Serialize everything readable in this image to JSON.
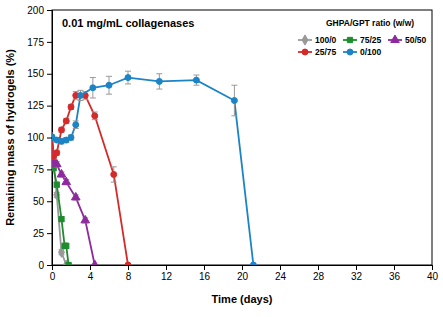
{
  "chart_data": {
    "type": "line",
    "title": "0.01 mg/mL collagenases",
    "x_label": "Time (days)",
    "y_label": "Remaining mass of hydrogels (%)",
    "legend_title": "GHPA/GPT ratio (w/w)",
    "legend": "upper right",
    "grid": false,
    "xlim": [
      0,
      40
    ],
    "xticks": [
      0,
      4,
      8,
      12,
      16,
      20,
      24,
      28,
      32,
      36,
      40
    ],
    "ylim": [
      0,
      200
    ],
    "yticks": [
      0,
      25,
      50,
      75,
      100,
      125,
      150,
      175,
      200
    ],
    "series": [
      {
        "name": "100/0",
        "color": "#999999",
        "marker": "diamond",
        "x": [
          0,
          0.17,
          0.5,
          1,
          1.5
        ],
        "values": [
          100,
          80,
          55,
          10,
          0
        ],
        "errors": [
          1,
          2,
          2,
          2,
          0
        ]
      },
      {
        "name": "75/25",
        "color": "#1e8c2e",
        "marker": "square",
        "x": [
          0,
          0.17,
          0.5,
          1,
          1.33,
          1.5,
          1.75
        ],
        "values": [
          100,
          76,
          63,
          36,
          15,
          15,
          0
        ],
        "errors": [
          1,
          2,
          2,
          2,
          2,
          2,
          0
        ]
      },
      {
        "name": "50/50",
        "color": "#8e2a9e",
        "marker": "triangle",
        "x": [
          0,
          0.17,
          0.5,
          1,
          1.5,
          2.5,
          3.5,
          4.5
        ],
        "values": [
          100,
          81,
          79,
          71,
          65,
          53,
          35,
          0
        ],
        "errors": [
          1,
          2,
          2,
          2,
          2,
          2,
          2,
          0
        ]
      },
      {
        "name": "25/75",
        "color": "#d42a2a",
        "marker": "circle",
        "x": [
          0,
          0.17,
          0.5,
          1,
          1.5,
          2,
          2.5,
          3.5,
          4.5,
          6.5,
          8
        ],
        "values": [
          100,
          85,
          88,
          106,
          113,
          124,
          133,
          133,
          117,
          71,
          0
        ],
        "errors": [
          1,
          2,
          2,
          2,
          2,
          2,
          3,
          3,
          3,
          6,
          0
        ]
      },
      {
        "name": "0/100",
        "color": "#1c84c6",
        "marker": "circle",
        "x": [
          0,
          0.5,
          1,
          1.5,
          2,
          2.5,
          3,
          4.3,
          6,
          8,
          11.3,
          15.2,
          19.2,
          21.2
        ],
        "values": [
          100,
          98,
          97,
          98,
          100,
          110,
          133,
          139,
          141,
          147,
          144,
          145,
          129,
          0
        ],
        "errors": [
          1,
          1,
          2,
          2,
          2,
          3,
          4,
          8,
          7,
          5,
          6,
          4,
          12,
          0
        ]
      }
    ]
  }
}
